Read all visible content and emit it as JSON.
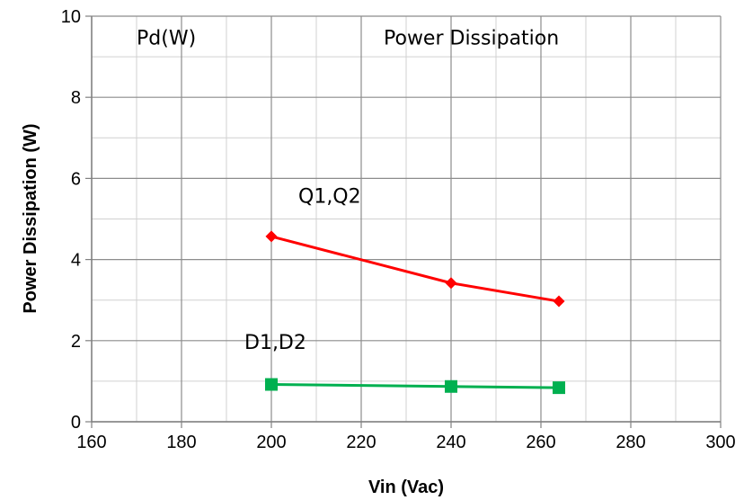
{
  "chart_data": {
    "type": "line",
    "title": "",
    "xlabel": "Vin (Vac)",
    "ylabel": "Power Dissipation (W)",
    "xlim": [
      160,
      300
    ],
    "ylim": [
      0,
      10
    ],
    "x_ticks": [
      160,
      180,
      200,
      220,
      240,
      260,
      280,
      300
    ],
    "y_ticks": [
      0,
      2,
      4,
      6,
      8,
      10
    ],
    "grid": true,
    "minor_grid": true,
    "legend": "none",
    "series": [
      {
        "name": "Q1,Q2",
        "color": "#ff0000",
        "marker": "diamond",
        "x": [
          200,
          240,
          264
        ],
        "y": [
          4.57,
          3.42,
          2.97
        ]
      },
      {
        "name": "D1,D2",
        "color": "#00b050",
        "marker": "square",
        "x": [
          200,
          240,
          264
        ],
        "y": [
          0.92,
          0.87,
          0.84
        ]
      }
    ],
    "annotations": [
      {
        "text": "Pd(W)",
        "x": 170,
        "y": 9.3
      },
      {
        "text": "Power Dissipation",
        "x": 225,
        "y": 9.3
      },
      {
        "text": "Q1,Q2",
        "x": 206,
        "y": 5.4
      },
      {
        "text": "D1,D2",
        "x": 194,
        "y": 1.8
      }
    ]
  }
}
